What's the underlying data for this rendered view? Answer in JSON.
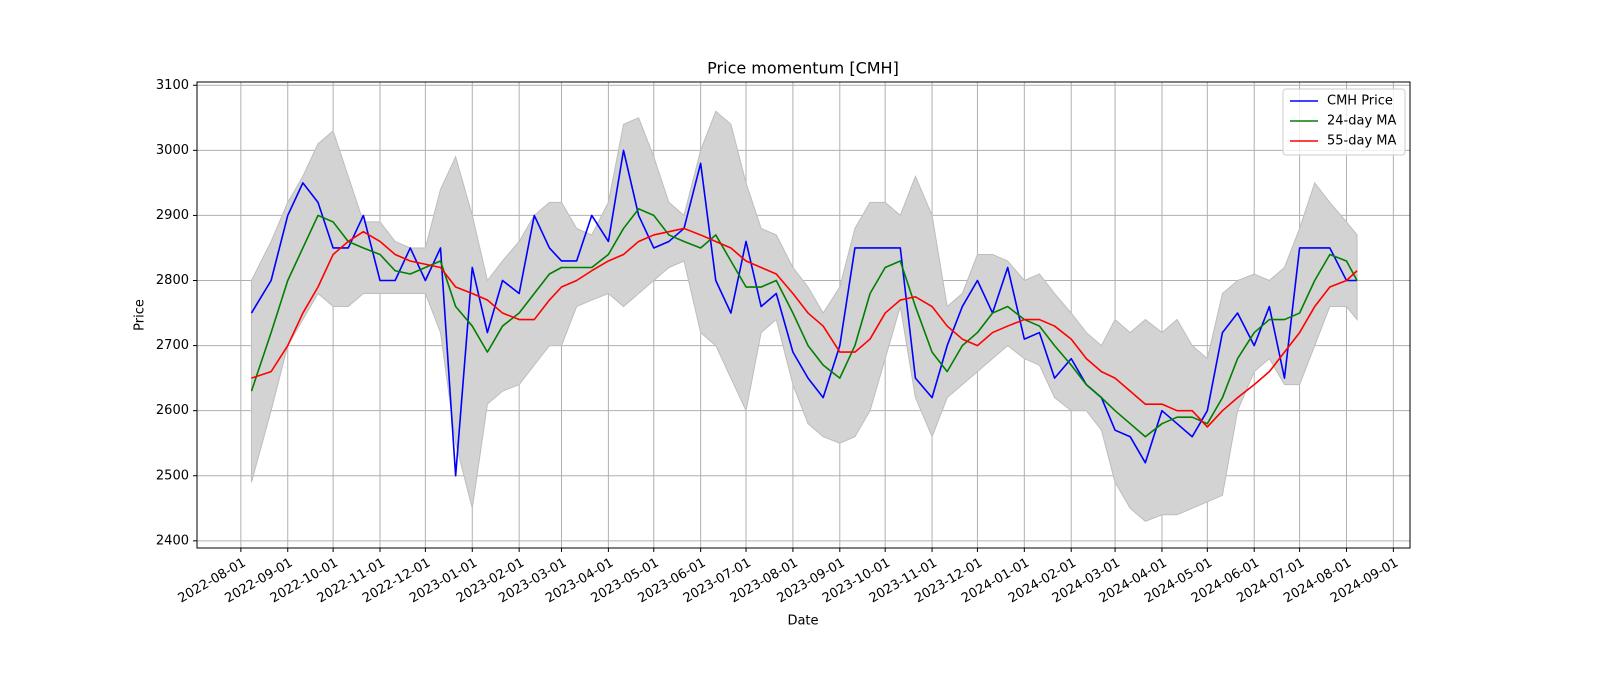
{
  "chart_data": {
    "type": "line",
    "title": "Price momentum [CMH]",
    "x_label": "Date",
    "y_label": "Price",
    "x": [
      "2022-08-08",
      "2022-08-21",
      "2022-09-01",
      "2022-09-11",
      "2022-09-21",
      "2022-10-01",
      "2022-10-11",
      "2022-10-21",
      "2022-11-01",
      "2022-11-11",
      "2022-11-21",
      "2022-12-01",
      "2022-12-11",
      "2022-12-21",
      "2023-01-01",
      "2023-01-11",
      "2023-01-21",
      "2023-02-01",
      "2023-02-11",
      "2023-02-21",
      "2023-03-01",
      "2023-03-11",
      "2023-03-21",
      "2023-04-01",
      "2023-04-11",
      "2023-04-21",
      "2023-05-01",
      "2023-05-11",
      "2023-05-21",
      "2023-06-01",
      "2023-06-11",
      "2023-06-21",
      "2023-07-01",
      "2023-07-11",
      "2023-07-21",
      "2023-08-01",
      "2023-08-11",
      "2023-08-21",
      "2023-09-01",
      "2023-09-11",
      "2023-09-21",
      "2023-10-01",
      "2023-10-11",
      "2023-10-21",
      "2023-11-01",
      "2023-11-11",
      "2023-11-21",
      "2023-12-01",
      "2023-12-11",
      "2023-12-21",
      "2024-01-01",
      "2024-01-11",
      "2024-01-21",
      "2024-02-01",
      "2024-02-11",
      "2024-02-21",
      "2024-03-01",
      "2024-03-11",
      "2024-03-21",
      "2024-04-01",
      "2024-04-11",
      "2024-04-21",
      "2024-05-01",
      "2024-05-11",
      "2024-05-21",
      "2024-06-01",
      "2024-06-11",
      "2024-06-21",
      "2024-07-01",
      "2024-07-11",
      "2024-07-21",
      "2024-08-01",
      "2024-08-08"
    ],
    "band": {
      "color": "#d3d3d3",
      "lower": [
        2490,
        2600,
        2700,
        2740,
        2780,
        2760,
        2760,
        2780,
        2780,
        2780,
        2780,
        2780,
        2720,
        2550,
        2450,
        2610,
        2630,
        2640,
        2670,
        2700,
        2700,
        2760,
        2770,
        2780,
        2760,
        2780,
        2800,
        2820,
        2830,
        2720,
        2700,
        2650,
        2600,
        2720,
        2740,
        2640,
        2580,
        2560,
        2550,
        2560,
        2600,
        2680,
        2760,
        2620,
        2560,
        2620,
        2640,
        2660,
        2680,
        2700,
        2680,
        2670,
        2620,
        2600,
        2600,
        2570,
        2490,
        2450,
        2430,
        2440,
        2440,
        2450,
        2460,
        2470,
        2600,
        2660,
        2680,
        2640,
        2640,
        2700,
        2760,
        2760,
        2740
      ],
      "upper": [
        2800,
        2860,
        2920,
        2960,
        3010,
        3030,
        2960,
        2890,
        2890,
        2860,
        2850,
        2850,
        2940,
        2990,
        2900,
        2800,
        2830,
        2860,
        2900,
        2920,
        2920,
        2880,
        2870,
        2920,
        3040,
        3050,
        2990,
        2920,
        2900,
        3000,
        3060,
        3040,
        2950,
        2880,
        2870,
        2820,
        2790,
        2750,
        2790,
        2880,
        2920,
        2920,
        2900,
        2960,
        2900,
        2760,
        2780,
        2840,
        2840,
        2830,
        2800,
        2810,
        2780,
        2750,
        2720,
        2700,
        2740,
        2720,
        2740,
        2720,
        2740,
        2700,
        2680,
        2780,
        2800,
        2810,
        2800,
        2820,
        2880,
        2950,
        2920,
        2890,
        2870
      ]
    },
    "series": [
      {
        "name": "CMH Price",
        "color": "#0000ff",
        "values": [
          2750,
          2800,
          2900,
          2950,
          2920,
          2850,
          2850,
          2900,
          2800,
          2800,
          2850,
          2800,
          2850,
          2500,
          2820,
          2720,
          2800,
          2780,
          2900,
          2850,
          2830,
          2830,
          2900,
          2860,
          3000,
          2900,
          2850,
          2860,
          2880,
          2980,
          2800,
          2750,
          2860,
          2760,
          2780,
          2690,
          2650,
          2620,
          2700,
          2850,
          2850,
          2850,
          2850,
          2650,
          2620,
          2700,
          2760,
          2800,
          2750,
          2820,
          2710,
          2720,
          2650,
          2680,
          2640,
          2620,
          2570,
          2560,
          2520,
          2600,
          2580,
          2560,
          2600,
          2720,
          2750,
          2700,
          2760,
          2650,
          2850,
          2850,
          2850,
          2800,
          2800
        ]
      },
      {
        "name": "24-day MA",
        "color": "#008000",
        "values": [
          2630,
          2720,
          2800,
          2850,
          2900,
          2890,
          2860,
          2850,
          2840,
          2815,
          2810,
          2820,
          2830,
          2760,
          2730,
          2690,
          2730,
          2750,
          2780,
          2810,
          2820,
          2820,
          2820,
          2840,
          2880,
          2910,
          2900,
          2870,
          2860,
          2850,
          2870,
          2830,
          2790,
          2790,
          2800,
          2750,
          2700,
          2670,
          2650,
          2700,
          2780,
          2820,
          2830,
          2760,
          2690,
          2660,
          2700,
          2720,
          2750,
          2760,
          2740,
          2730,
          2700,
          2670,
          2640,
          2620,
          2600,
          2580,
          2560,
          2580,
          2590,
          2590,
          2580,
          2620,
          2680,
          2720,
          2740,
          2740,
          2750,
          2800,
          2840,
          2830,
          2800
        ]
      },
      {
        "name": "55-day MA",
        "color": "#ff0000",
        "values": [
          2650,
          2660,
          2700,
          2750,
          2790,
          2840,
          2860,
          2875,
          2860,
          2840,
          2830,
          2825,
          2820,
          2790,
          2780,
          2770,
          2750,
          2740,
          2740,
          2770,
          2790,
          2800,
          2815,
          2830,
          2840,
          2860,
          2870,
          2875,
          2880,
          2870,
          2860,
          2850,
          2830,
          2820,
          2810,
          2780,
          2750,
          2730,
          2690,
          2690,
          2710,
          2750,
          2770,
          2775,
          2760,
          2730,
          2710,
          2700,
          2720,
          2730,
          2740,
          2740,
          2730,
          2710,
          2680,
          2660,
          2650,
          2630,
          2610,
          2610,
          2600,
          2600,
          2575,
          2600,
          2620,
          2640,
          2660,
          2690,
          2720,
          2760,
          2790,
          2800,
          2815
        ]
      }
    ],
    "xlim": [
      "2022-07-03",
      "2024-09-12"
    ],
    "xticks": [
      "2022-08-01",
      "2022-09-01",
      "2022-10-01",
      "2022-11-01",
      "2022-12-01",
      "2023-01-01",
      "2023-02-01",
      "2023-03-01",
      "2023-04-01",
      "2023-05-01",
      "2023-06-01",
      "2023-07-01",
      "2023-08-01",
      "2023-09-01",
      "2023-10-01",
      "2023-11-01",
      "2023-12-01",
      "2024-01-01",
      "2024-02-01",
      "2024-03-01",
      "2024-04-01",
      "2024-05-01",
      "2024-06-01",
      "2024-07-01",
      "2024-08-01",
      "2024-09-01"
    ],
    "ylim": [
      2389,
      3105
    ],
    "yticks": [
      2400,
      2500,
      2600,
      2700,
      2800,
      2900,
      3000,
      3100
    ],
    "grid": true,
    "legend": "upper right"
  }
}
